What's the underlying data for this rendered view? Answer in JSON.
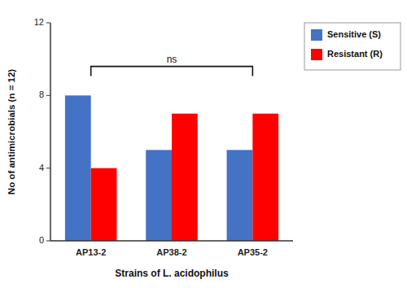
{
  "chart_data": {
    "type": "bar",
    "categories": [
      "AP13-2",
      "AP38-2",
      "AP35-2"
    ],
    "series": [
      {
        "name": "Sensitive (S)",
        "color": "#4472C4",
        "values": [
          8,
          5,
          5
        ]
      },
      {
        "name": "Resistant (R)",
        "color": "#FF0000",
        "values": [
          4,
          7,
          7
        ]
      }
    ],
    "x_label": "Strains of L. acidophilus",
    "y_label": "No of antimicrobials (n = 12)",
    "ylim": [
      0,
      12
    ],
    "yticks": [
      0,
      4,
      8,
      12
    ],
    "annotations": [
      {
        "text": "ns",
        "y": 9.6
      }
    ],
    "grid": false,
    "legend": "right"
  }
}
